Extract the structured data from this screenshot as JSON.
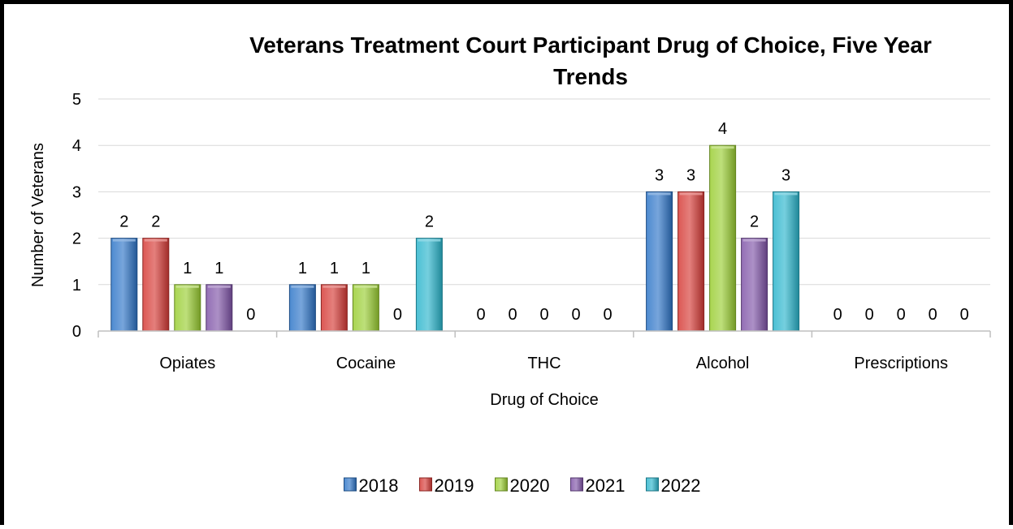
{
  "chart_data": {
    "type": "bar",
    "title_line1": "Veterans Treatment Court Participant Drug of Choice, Five Year",
    "title_line2": "Trends",
    "xlabel": "Drug of Choice",
    "ylabel": "Number of Veterans",
    "ylim": [
      0,
      5
    ],
    "yticks": [
      "0",
      "1",
      "2",
      "3",
      "4",
      "5"
    ],
    "grid": true,
    "legend_position": "bottom",
    "categories": [
      "Opiates",
      "Cocaine",
      "THC",
      "Alcohol",
      "Prescriptions"
    ],
    "series": [
      {
        "name": "2018",
        "color": "#2E75C8",
        "values": [
          2,
          1,
          0,
          3,
          0
        ]
      },
      {
        "name": "2019",
        "color": "#D63A36",
        "values": [
          2,
          1,
          0,
          3,
          0
        ]
      },
      {
        "name": "2020",
        "color": "#9ACD32",
        "values": [
          1,
          1,
          0,
          4,
          0
        ]
      },
      {
        "name": "2021",
        "color": "#8054A8",
        "values": [
          1,
          0,
          0,
          2,
          0
        ]
      },
      {
        "name": "2022",
        "color": "#2BB5CC",
        "values": [
          0,
          2,
          0,
          3,
          0
        ]
      }
    ]
  }
}
